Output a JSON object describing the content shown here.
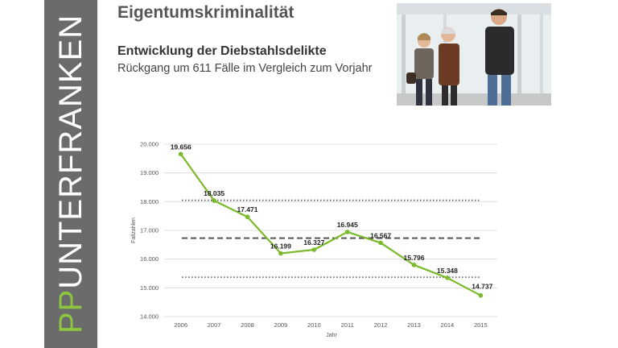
{
  "sidebar": {
    "brand_prefix": "PP",
    "brand_rest": "UNTERFRANKEN",
    "prefix_color": "#8cc63f"
  },
  "header": {
    "title": "Eigentumskriminalität",
    "subtitle": "Entwicklung der Diebstahlsdelikte",
    "subline": "Rückgang um 611 Fälle im Vergleich zum Vorjahr"
  },
  "photo": {
    "icon": "people-photo"
  },
  "chart_data": {
    "type": "line",
    "x": [
      "2006",
      "2007",
      "2008",
      "2009",
      "2010",
      "2011",
      "2012",
      "2013",
      "2014",
      "2015"
    ],
    "series": [
      {
        "values": [
          19656,
          18035,
          17471,
          16199,
          16327,
          16945,
          16567,
          15796,
          15348,
          14737
        ],
        "labels": [
          "19.656",
          "18.035",
          "17.471",
          "16.199",
          "16.327",
          "16.945",
          "16.567",
          "15.796",
          "15.348",
          "14.737"
        ],
        "color": "#7ab929"
      }
    ],
    "reference_lines": [
      {
        "value": 18050,
        "style": "dotted"
      },
      {
        "value": 16730,
        "style": "dashed"
      },
      {
        "value": 15370,
        "style": "dotted"
      }
    ],
    "xlabel": "Jahr",
    "ylabel": "Fallzahlen",
    "ylim": [
      14000,
      20000
    ],
    "yticks": [
      20000,
      19000,
      18000,
      17000,
      16000,
      15000,
      14000
    ],
    "ytick_labels": [
      "20.000",
      "19.000",
      "18.000",
      "17.000",
      "16.000",
      "15.000",
      "14.000"
    ],
    "grid": true
  }
}
